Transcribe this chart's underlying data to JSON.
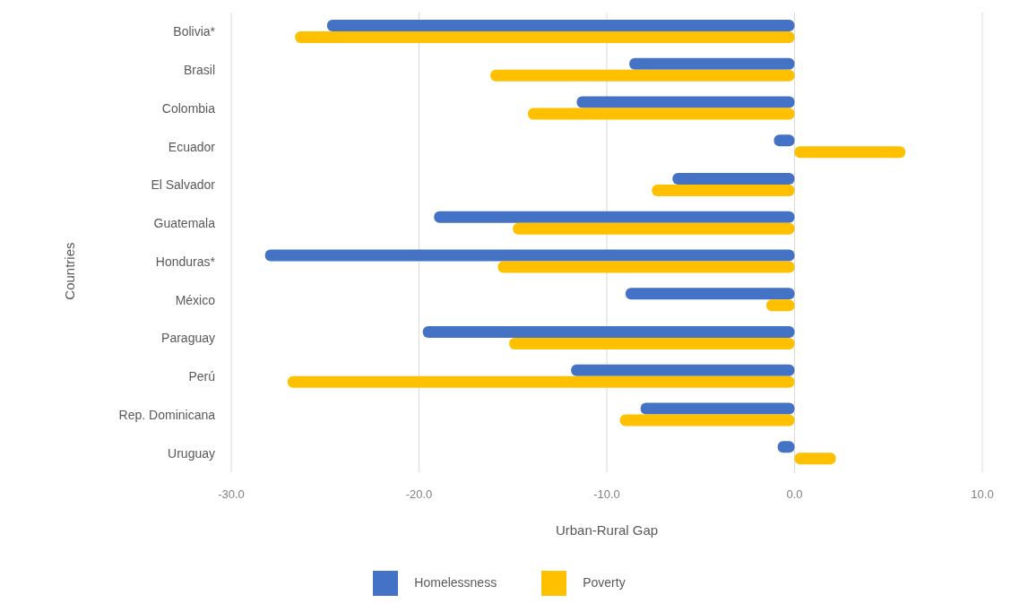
{
  "chart_data": {
    "type": "bar",
    "orientation": "horizontal",
    "xlabel": "Urban-Rural Gap",
    "ylabel": "Countries",
    "categories": [
      "Bolivia*",
      "Brasil",
      "Colombia",
      "Ecuador",
      "El Salvador",
      "Guatemala",
      "Honduras*",
      "México",
      "Paraguay",
      "Perú",
      "Rep. Dominicana",
      "Uruguay"
    ],
    "series": [
      {
        "name": "Homelessness",
        "color": "#4472c4",
        "values": [
          -24.9,
          -8.8,
          -11.6,
          -1.1,
          -6.5,
          -19.2,
          -28.2,
          -9.0,
          -19.8,
          -11.9,
          -8.2,
          -0.9
        ]
      },
      {
        "name": "Poverty",
        "color": "#ffc000",
        "values": [
          -26.6,
          -16.2,
          -14.2,
          5.9,
          -7.6,
          -15.0,
          -15.8,
          -1.5,
          -15.2,
          -27.0,
          -9.3,
          2.2
        ]
      }
    ],
    "xlim": [
      -30,
      10
    ],
    "xticks": [
      {
        "value": -30,
        "label": "-30.0"
      },
      {
        "value": -20,
        "label": "-20.0"
      },
      {
        "value": -10,
        "label": "-10.0"
      },
      {
        "value": 0,
        "label": "0.0"
      },
      {
        "value": 10,
        "label": "10.0"
      }
    ],
    "grid": "x",
    "legend": "bottom"
  }
}
